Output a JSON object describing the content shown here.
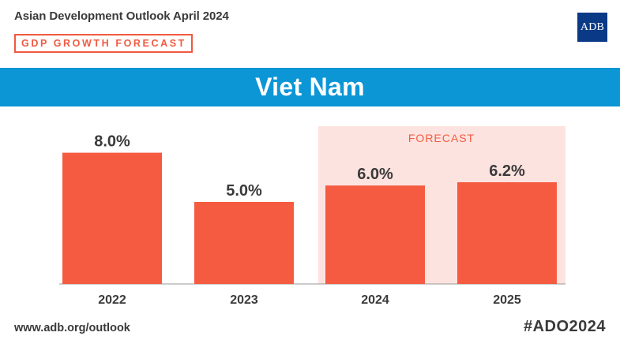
{
  "header": {
    "publication": "Asian Development Outlook April 2024",
    "tag": "GDP GROWTH FORECAST",
    "logo_text": "ADB"
  },
  "banner": {
    "country": "Viet Nam"
  },
  "forecast_label": "FORECAST",
  "footer": {
    "url": "www.adb.org/outlook",
    "hashtag": "#ADO2024"
  },
  "colors": {
    "bar": "#f45b41",
    "banner": "#0c96d6",
    "forecast_bg": "#fde3df",
    "logo": "#0a3a86",
    "text": "#3a3a3a"
  },
  "chart_data": {
    "type": "bar",
    "title": "Viet Nam",
    "categories": [
      "2022",
      "2023",
      "2024",
      "2025"
    ],
    "values": [
      8.0,
      5.0,
      6.0,
      6.2
    ],
    "value_labels": [
      "8.0%",
      "5.0%",
      "6.0%",
      "6.2%"
    ],
    "forecast_categories": [
      "2024",
      "2025"
    ],
    "xlabel": "",
    "ylabel": "",
    "ylim": [
      0,
      10
    ],
    "grid": false,
    "legend": "none"
  }
}
